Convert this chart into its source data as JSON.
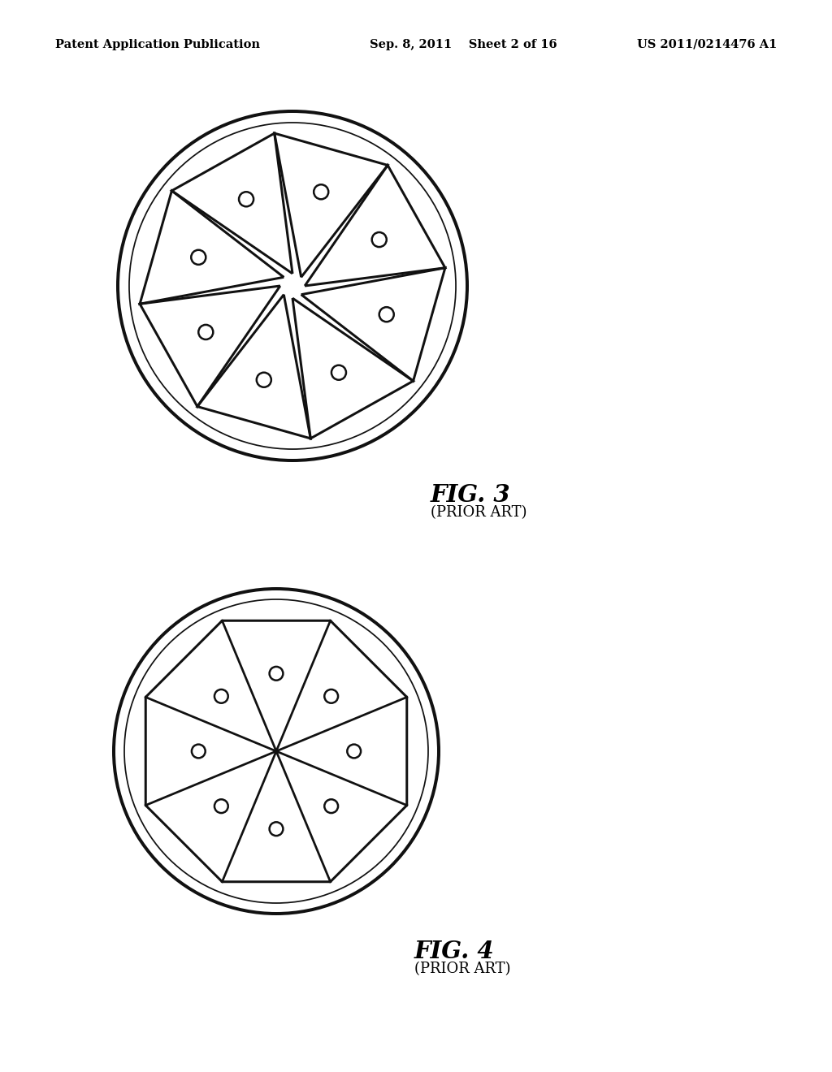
{
  "fig_width": 10.24,
  "fig_height": 13.2,
  "bg_color": "#ffffff",
  "header_left": "Patent Application Publication",
  "header_mid": "Sep. 8, 2011    Sheet 2 of 16",
  "header_right": "US 2011/0214476 A1",
  "fig3_label": "FIG. 3",
  "fig3_sublabel": "(PRIOR ART)",
  "fig4_label": "FIG. 4",
  "fig4_sublabel": "(PRIOR ART)",
  "n_segments": 8,
  "line_color": "#111111",
  "line_width": 1.8
}
